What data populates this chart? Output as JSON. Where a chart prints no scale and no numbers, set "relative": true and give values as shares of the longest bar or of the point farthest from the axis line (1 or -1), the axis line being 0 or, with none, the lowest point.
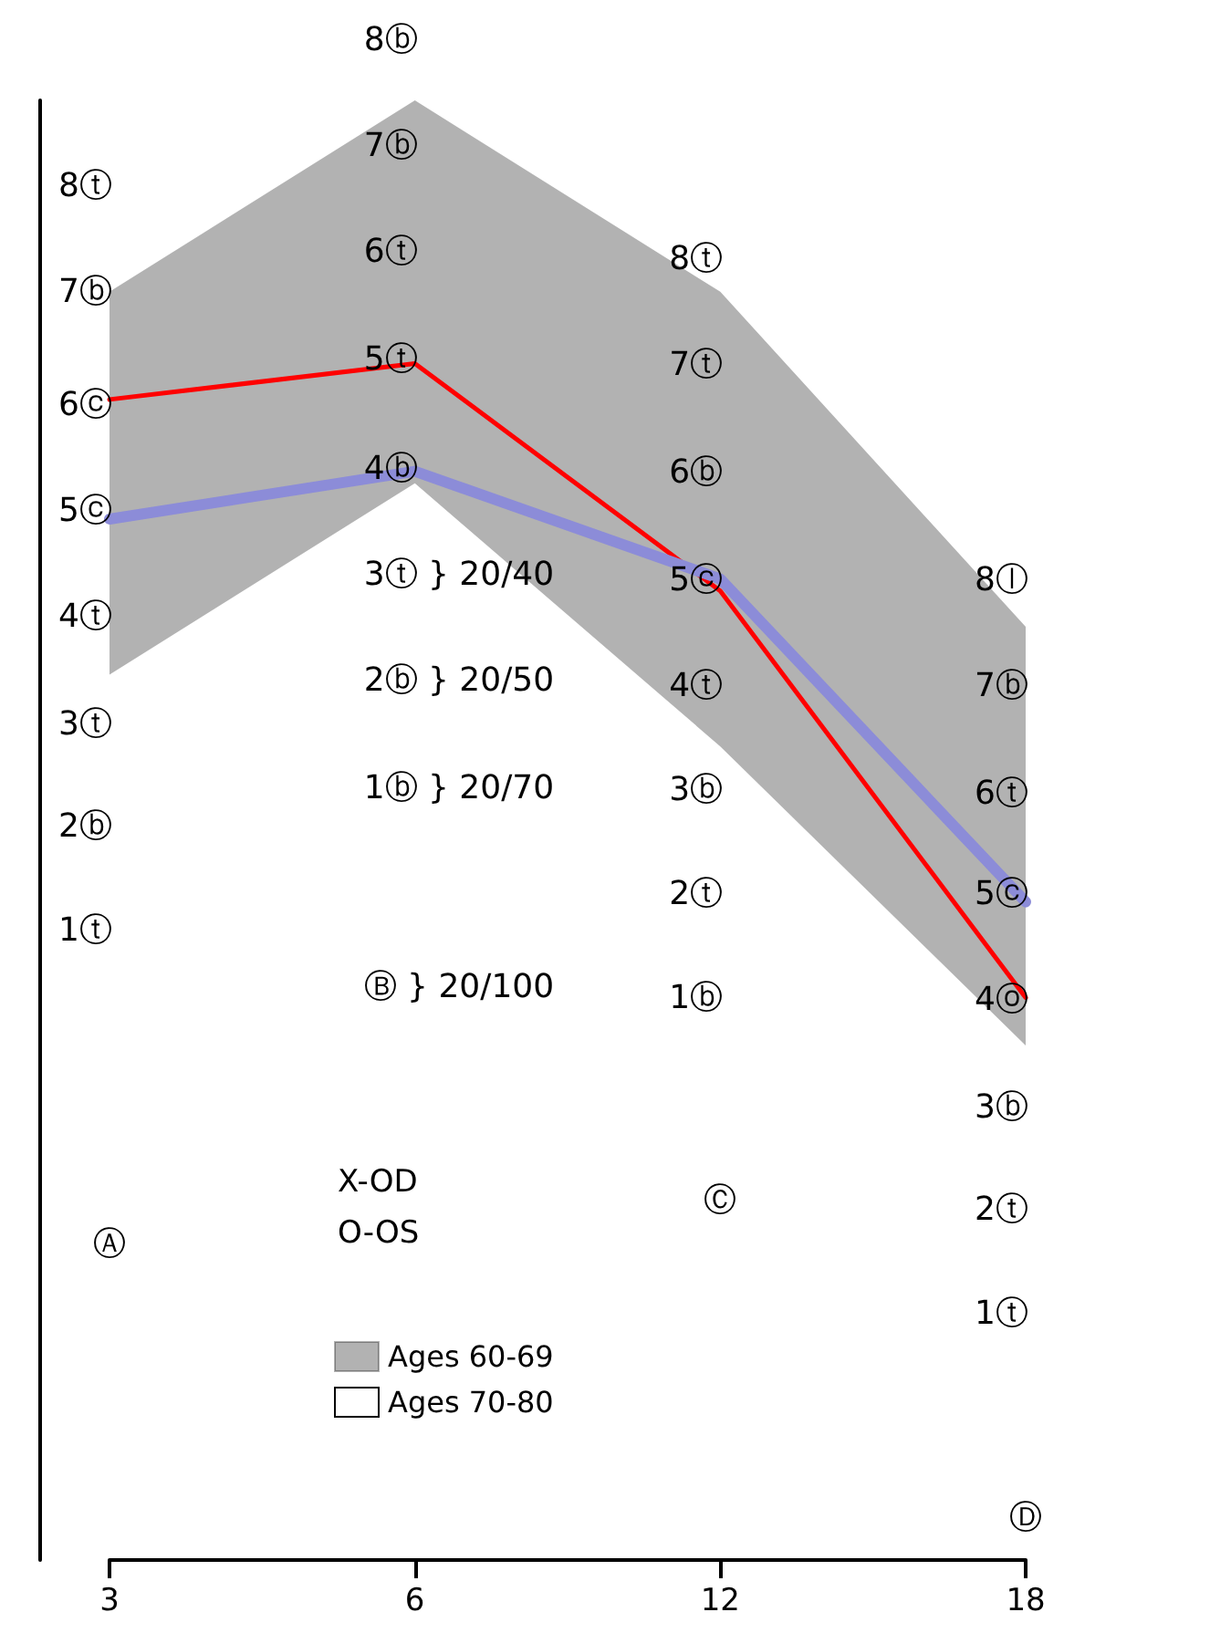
{
  "chart_data": {
    "type": "line",
    "relative": true,
    "categories": [
      "3",
      "6",
      "12",
      "18"
    ],
    "marker": "none",
    "grid": false,
    "legend": "bottom",
    "series": [
      {
        "color": "#ff0000",
        "values": [
          0.97,
          1.0,
          0.81,
          0.47
        ]
      },
      {
        "color": "#8c8cd8",
        "values": [
          0.87,
          0.91,
          0.82,
          0.55
        ]
      },
      {
        "name": "Ages 60-69",
        "type": "area",
        "color": "#000000",
        "values": [
          null,
          null,
          null,
          null
        ],
        "lower": [
          0.74,
          0.9,
          0.68,
          0.43
        ],
        "upper": [
          1.06,
          1.22,
          1.06,
          0.78
        ]
      },
      {
        "name": "Ages 70-80",
        "type": "area",
        "color": "#ffffff",
        "values": [
          null,
          null,
          null,
          null
        ]
      }
    ],
    "annotations": [
      "8ⓣ",
      "7ⓑ",
      "6ⓒ",
      "5ⓒ",
      "4ⓣ",
      "3ⓣ",
      "2ⓑ",
      "1ⓣ",
      "Ⓐ",
      "8ⓑ",
      "7ⓑ",
      "6ⓣ",
      "5ⓣ",
      "4ⓑ",
      "3ⓣ } 20/40",
      "2ⓑ } 20/50",
      "1ⓑ } 20/70",
      "Ⓑ } 20/100",
      "8ⓣ",
      "7ⓣ",
      "6ⓑ",
      "5ⓒ",
      "4ⓣ",
      "3ⓑ",
      "2ⓣ",
      "1ⓑ",
      "Ⓒ",
      "8ⓛ",
      "7ⓑ",
      "6ⓣ",
      "5ⓒ",
      "4ⓞ",
      "3ⓑ",
      "2ⓣ",
      "1ⓣ",
      "Ⓓ",
      "X-OD",
      "O-OS"
    ]
  }
}
